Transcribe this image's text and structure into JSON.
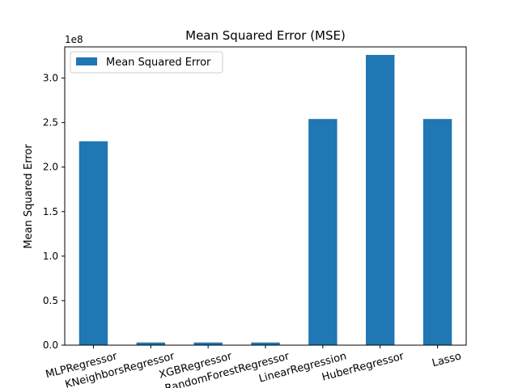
{
  "chart_data": {
    "type": "bar",
    "title": "Mean Squared Error (MSE)",
    "xlabel": "",
    "ylabel": "Mean Squared Error",
    "y_offset_label": "1e8",
    "categories": [
      "MLPRegressor",
      "KNeighborsRegressor",
      "XGBRegressor",
      "RandomForestRegressor",
      "LinearRegression",
      "HuberRegressor",
      "Lasso"
    ],
    "series": [
      {
        "name": "Mean Squared Error",
        "values": [
          2.29,
          0.03,
          0.03,
          0.03,
          2.54,
          3.26,
          2.54
        ]
      }
    ],
    "y_ticks": [
      "0.0",
      "0.5",
      "1.0",
      "1.5",
      "2.0",
      "2.5",
      "3.0"
    ],
    "ylim": [
      0,
      3.35
    ],
    "legend_position": "top-left",
    "grid": false,
    "color": "#1f77b4"
  }
}
